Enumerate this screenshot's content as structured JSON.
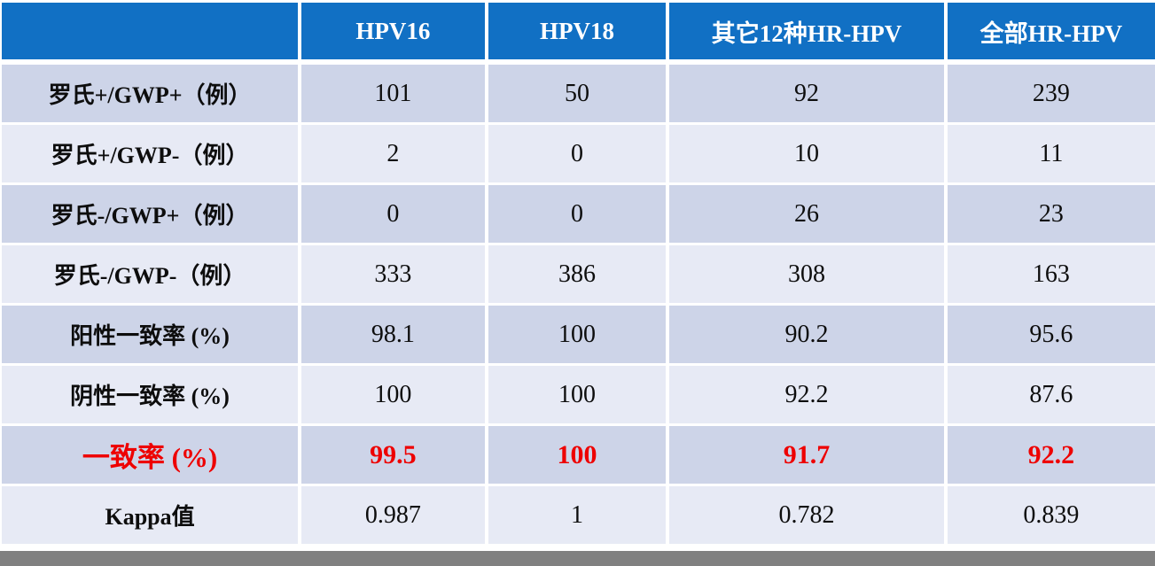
{
  "chart_data": {
    "type": "table",
    "columns": [
      "",
      "HPV16",
      "HPV18",
      "其它12种HR-HPV",
      "全部HR-HPV"
    ],
    "rows": [
      {
        "label": "罗氏+/GWP+（例）",
        "values": [
          101,
          50,
          92,
          239
        ],
        "highlight": false
      },
      {
        "label": "罗氏+/GWP-（例）",
        "values": [
          2,
          0,
          10,
          11
        ],
        "highlight": false
      },
      {
        "label": "罗氏-/GWP+（例）",
        "values": [
          0,
          0,
          26,
          23
        ],
        "highlight": false
      },
      {
        "label": "罗氏-/GWP-（例）",
        "values": [
          333,
          386,
          308,
          163
        ],
        "highlight": false
      },
      {
        "label": "阳性一致率 (%)",
        "values": [
          98.1,
          100,
          90.2,
          95.6
        ],
        "highlight": false
      },
      {
        "label": "阴性一致率 (%)",
        "values": [
          100,
          100,
          92.2,
          87.6
        ],
        "highlight": false
      },
      {
        "label": "一致率 (%)",
        "values": [
          99.5,
          100,
          91.7,
          92.2
        ],
        "highlight": true
      },
      {
        "label": "Kappa值",
        "values": [
          0.987,
          1,
          0.782,
          0.839
        ],
        "highlight": false
      }
    ],
    "layout_hints": {
      "banded_rows": true,
      "highlight_row_index": 6,
      "header_position": "top"
    }
  },
  "colors": {
    "header_bg": "#1170c4",
    "header_text": "#ffffff",
    "band_dark": "#cdd4e8",
    "band_light": "#e7eaf5",
    "highlight_text": "#ee0000",
    "body_text": "#0d0d0d",
    "bottom_bar": "#808080"
  }
}
